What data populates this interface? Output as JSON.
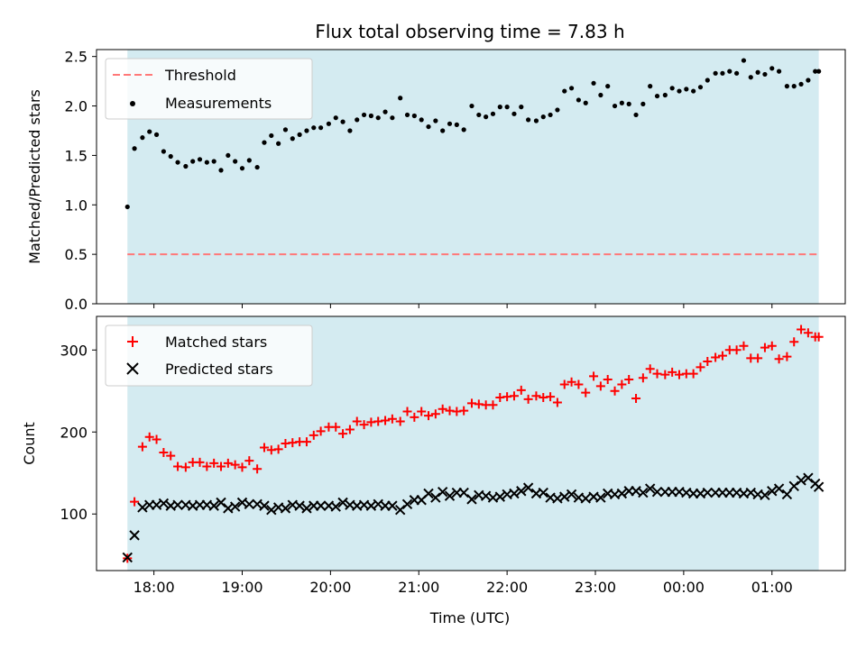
{
  "title": "Flux total observing time = 7.83 h",
  "chart_data": [
    {
      "type": "scatter",
      "ylabel": "Matched/Predicted stars",
      "xlim": [
        17.35,
        25.83
      ],
      "ylim": [
        0,
        2.57
      ],
      "yticks": [
        0.0,
        0.5,
        1.0,
        1.5,
        2.0,
        2.5
      ],
      "yticklabels": [
        "0.0",
        "0.5",
        "1.0",
        "1.5",
        "2.0",
        "2.5"
      ],
      "xticks": [
        18,
        19,
        20,
        21,
        22,
        23,
        24,
        25
      ],
      "shaded_span": [
        17.7,
        25.53
      ],
      "shade_color": "#d4ebf1",
      "legend": [
        {
          "label": "Threshold",
          "style": "dashed-line",
          "color": "#ff7878"
        },
        {
          "label": "Measurements",
          "style": "dot",
          "color": "#000000"
        }
      ],
      "legend_placement": "upper-left",
      "threshold": 0.5,
      "series": [
        {
          "name": "Measurements",
          "x": [
            17.7,
            17.78,
            17.87,
            17.95,
            18.03,
            18.11,
            18.19,
            18.27,
            18.36,
            18.44,
            18.52,
            18.6,
            18.68,
            18.76,
            18.84,
            18.92,
            19.0,
            19.08,
            19.17,
            19.25,
            19.33,
            19.41,
            19.49,
            19.57,
            19.65,
            19.73,
            19.81,
            19.89,
            19.98,
            20.06,
            20.14,
            20.22,
            20.3,
            20.38,
            20.46,
            20.54,
            20.62,
            20.7,
            20.79,
            20.87,
            20.95,
            21.03,
            21.11,
            21.19,
            21.27,
            21.35,
            21.43,
            21.51,
            21.6,
            21.68,
            21.76,
            21.84,
            21.92,
            22.0,
            22.08,
            22.16,
            22.24,
            22.33,
            22.41,
            22.49,
            22.57,
            22.65,
            22.73,
            22.81,
            22.89,
            22.98,
            23.06,
            23.14,
            23.22,
            23.3,
            23.38,
            23.46,
            23.54,
            23.62,
            23.7,
            23.79,
            23.87,
            23.95,
            24.03,
            24.11,
            24.19,
            24.27,
            24.36,
            24.44,
            24.52,
            24.6,
            24.68,
            24.76,
            24.84,
            24.92,
            25.0,
            25.08,
            25.17,
            25.25,
            25.33,
            25.41,
            25.49,
            25.53
          ],
          "y": [
            0.98,
            1.57,
            1.68,
            1.74,
            1.71,
            1.54,
            1.49,
            1.43,
            1.39,
            1.44,
            1.46,
            1.43,
            1.44,
            1.35,
            1.5,
            1.44,
            1.37,
            1.45,
            1.38,
            1.63,
            1.7,
            1.62,
            1.76,
            1.67,
            1.71,
            1.75,
            1.78,
            1.78,
            1.82,
            1.88,
            1.84,
            1.75,
            1.86,
            1.91,
            1.9,
            1.88,
            1.94,
            1.88,
            2.08,
            1.91,
            1.9,
            1.86,
            1.79,
            1.85,
            1.75,
            1.82,
            1.81,
            1.76,
            2.0,
            1.91,
            1.89,
            1.92,
            1.99,
            1.99,
            1.92,
            1.99,
            1.86,
            1.85,
            1.89,
            1.91,
            1.96,
            2.15,
            2.18,
            2.06,
            2.03,
            2.23,
            2.11,
            2.2,
            2.0,
            2.03,
            2.02,
            1.91,
            2.02,
            2.2,
            2.1,
            2.11,
            2.18,
            2.15,
            2.17,
            2.15,
            2.19,
            2.26,
            2.33,
            2.33,
            2.35,
            2.33,
            2.46,
            2.29,
            2.34,
            2.32,
            2.38,
            2.35,
            2.2,
            2.2,
            2.22,
            2.26,
            2.35,
            2.35
          ]
        }
      ]
    },
    {
      "type": "scatter",
      "xlabel": "Time (UTC)",
      "ylabel": "Count",
      "xlim": [
        17.35,
        25.83
      ],
      "ylim": [
        31,
        341
      ],
      "yticks": [
        100,
        200,
        300
      ],
      "yticklabels": [
        "100",
        "200",
        "300"
      ],
      "xticks": [
        18,
        19,
        20,
        21,
        22,
        23,
        24,
        25
      ],
      "xticklabels": [
        "18:00",
        "19:00",
        "20:00",
        "21:00",
        "22:00",
        "23:00",
        "00:00",
        "01:00"
      ],
      "shaded_span": [
        17.7,
        25.53
      ],
      "shade_color": "#d4ebf1",
      "legend_placement": "upper-left",
      "series": [
        {
          "name": "Matched stars",
          "marker": "plus",
          "color": "#ff0000",
          "x": [
            17.7,
            17.78,
            17.87,
            17.95,
            18.03,
            18.11,
            18.19,
            18.27,
            18.36,
            18.44,
            18.52,
            18.6,
            18.68,
            18.76,
            18.84,
            18.92,
            19.0,
            19.08,
            19.17,
            19.25,
            19.33,
            19.41,
            19.49,
            19.57,
            19.65,
            19.73,
            19.81,
            19.89,
            19.98,
            20.06,
            20.14,
            20.22,
            20.3,
            20.38,
            20.46,
            20.54,
            20.62,
            20.7,
            20.79,
            20.87,
            20.95,
            21.03,
            21.11,
            21.19,
            21.27,
            21.35,
            21.43,
            21.51,
            21.6,
            21.68,
            21.76,
            21.84,
            21.92,
            22.0,
            22.08,
            22.16,
            22.24,
            22.33,
            22.41,
            22.49,
            22.57,
            22.65,
            22.73,
            22.81,
            22.89,
            22.98,
            23.06,
            23.14,
            23.22,
            23.3,
            23.38,
            23.46,
            23.54,
            23.62,
            23.7,
            23.79,
            23.87,
            23.95,
            24.03,
            24.11,
            24.19,
            24.27,
            24.36,
            24.44,
            24.52,
            24.6,
            24.68,
            24.76,
            24.84,
            24.92,
            25.0,
            25.08,
            25.17,
            25.25,
            25.33,
            25.41,
            25.49,
            25.53
          ],
          "y": [
            46,
            115,
            182,
            194,
            191,
            175,
            171,
            158,
            157,
            163,
            163,
            158,
            162,
            158,
            162,
            160,
            157,
            165,
            155,
            181,
            178,
            179,
            186,
            187,
            188,
            188,
            196,
            201,
            206,
            206,
            198,
            203,
            213,
            209,
            212,
            213,
            214,
            216,
            213,
            225,
            218,
            225,
            220,
            222,
            228,
            226,
            225,
            226,
            235,
            234,
            233,
            233,
            242,
            243,
            244,
            251,
            240,
            244,
            242,
            243,
            236,
            258,
            261,
            258,
            248,
            268,
            256,
            264,
            250,
            258,
            264,
            241,
            266,
            277,
            271,
            270,
            273,
            270,
            271,
            271,
            279,
            286,
            291,
            293,
            300,
            300,
            305,
            290,
            290,
            303,
            305,
            289,
            292,
            310,
            325,
            321,
            316,
            316
          ]
        },
        {
          "name": "Predicted stars",
          "marker": "x",
          "color": "#000000",
          "x": [
            17.7,
            17.78,
            17.87,
            17.95,
            18.03,
            18.11,
            18.19,
            18.27,
            18.36,
            18.44,
            18.52,
            18.6,
            18.68,
            18.76,
            18.84,
            18.92,
            19.0,
            19.08,
            19.17,
            19.25,
            19.33,
            19.41,
            19.49,
            19.57,
            19.65,
            19.73,
            19.81,
            19.89,
            19.98,
            20.06,
            20.14,
            20.22,
            20.3,
            20.38,
            20.46,
            20.54,
            20.62,
            20.7,
            20.79,
            20.87,
            20.95,
            21.03,
            21.11,
            21.19,
            21.27,
            21.35,
            21.43,
            21.51,
            21.6,
            21.68,
            21.76,
            21.84,
            21.92,
            22.0,
            22.08,
            22.16,
            22.24,
            22.33,
            22.41,
            22.49,
            22.57,
            22.65,
            22.73,
            22.81,
            22.89,
            22.98,
            23.06,
            23.14,
            23.22,
            23.3,
            23.38,
            23.46,
            23.54,
            23.62,
            23.7,
            23.79,
            23.87,
            23.95,
            24.03,
            24.11,
            24.19,
            24.27,
            24.36,
            24.44,
            24.52,
            24.6,
            24.68,
            24.76,
            24.84,
            24.92,
            25.0,
            25.08,
            25.17,
            25.25,
            25.33,
            25.41,
            25.49,
            25.53
          ],
          "y": [
            47,
            74,
            108,
            111,
            111,
            113,
            110,
            111,
            111,
            110,
            111,
            111,
            110,
            114,
            107,
            109,
            114,
            112,
            112,
            110,
            105,
            108,
            107,
            111,
            110,
            107,
            110,
            110,
            110,
            109,
            114,
            111,
            110,
            111,
            110,
            112,
            110,
            110,
            105,
            112,
            117,
            117,
            125,
            120,
            127,
            122,
            126,
            126,
            118,
            123,
            122,
            120,
            121,
            124,
            125,
            128,
            132,
            125,
            126,
            120,
            119,
            121,
            124,
            120,
            119,
            121,
            120,
            125,
            124,
            125,
            128,
            128,
            126,
            131,
            127,
            127,
            127,
            127,
            126,
            125,
            125,
            126,
            126,
            126,
            126,
            126,
            125,
            126,
            124,
            123,
            128,
            131,
            124,
            134,
            141,
            144,
            137,
            133
          ]
        }
      ]
    }
  ]
}
